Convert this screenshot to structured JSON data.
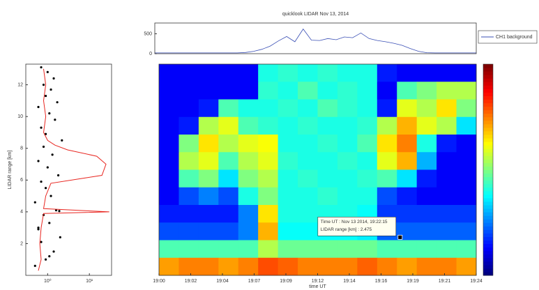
{
  "chart_data": [
    {
      "type": "line",
      "title": "quicklook LIDAR Nov 13, 2014",
      "series": [
        {
          "name": "CH1 background",
          "color": "#3a4fb5",
          "values": [
            20,
            20,
            20,
            20,
            20,
            20,
            20,
            20,
            20,
            20,
            20,
            30,
            60,
            110,
            190,
            320,
            430,
            300,
            620,
            340,
            330,
            380,
            350,
            420,
            400,
            520,
            380,
            330,
            300,
            260,
            210,
            130,
            60,
            25,
            20,
            20,
            20,
            20,
            20,
            20
          ]
        }
      ],
      "ylim": [
        0,
        770
      ],
      "yticks": [
        0,
        500
      ],
      "legend": "right"
    },
    {
      "type": "scatter",
      "ylabel": "LIDAR range [km]",
      "xscale": "log",
      "xlim": [
        0.3,
        34
      ],
      "xticks": [
        {
          "value": 1,
          "label": "10⁰"
        },
        {
          "value": 10,
          "label": "10¹"
        }
      ],
      "ylim": [
        0,
        13.3
      ],
      "yticks": [
        2,
        4,
        6,
        8,
        10,
        12
      ],
      "series": [
        {
          "color": "#000000",
          "kind": "dots",
          "x": [
            0.5,
            0.9,
            1.4,
            0.7,
            2.0,
            0.6,
            1.1,
            0.8,
            1.6,
            0.5,
            1.2,
            0.9,
            0.7,
            1.8,
            1.0,
            0.6,
            1.3,
            0.8,
            2.2,
            0.9,
            0.7,
            1.5,
            1.1,
            0.6,
            1.7,
            0.9,
            1.2,
            0.8,
            1.4,
            1.0,
            0.7,
            1.9,
            0.6,
            1.1
          ],
          "values": [
            0.6,
            1.0,
            1.5,
            2.1,
            2.4,
            2.9,
            3.3,
            3.8,
            4.1,
            4.6,
            5.0,
            5.5,
            5.9,
            6.3,
            6.8,
            7.2,
            7.6,
            8.1,
            8.5,
            8.9,
            9.3,
            9.8,
            10.2,
            10.6,
            10.9,
            11.3,
            11.7,
            12.0,
            12.4,
            12.8,
            13.1,
            4.05,
            3.0,
            1.2
          ]
        },
        {
          "color": "#e8251f",
          "kind": "line",
          "x": [
            0.6,
            0.7,
            0.65,
            0.7,
            0.8,
            30,
            0.8,
            0.9,
            1.2,
            20,
            25,
            15,
            3,
            1.5,
            1.0,
            0.8,
            0.9,
            0.8,
            0.9,
            0.8
          ],
          "values": [
            0.3,
            1.0,
            2.0,
            3.0,
            3.9,
            4.0,
            4.2,
            5.0,
            5.8,
            6.3,
            7.0,
            7.5,
            7.9,
            8.2,
            8.5,
            9.0,
            10.0,
            11.0,
            12.0,
            13.0
          ]
        }
      ]
    },
    {
      "type": "heatmap",
      "xlabel": "time UT",
      "colormap": "jet",
      "zlim": [
        0,
        1
      ],
      "xlim": [
        0,
        10
      ],
      "ylim": [
        0,
        13.3
      ],
      "xticks": [
        {
          "value": 0,
          "label": "19:00"
        },
        {
          "value": 1,
          "label": "19:02"
        },
        {
          "value": 2,
          "label": "19:04"
        },
        {
          "value": 3,
          "label": "19:07"
        },
        {
          "value": 4,
          "label": "19:09"
        },
        {
          "value": 5,
          "label": "19:12"
        },
        {
          "value": 6,
          "label": "19:14"
        },
        {
          "value": 7,
          "label": "19:16"
        },
        {
          "value": 8,
          "label": "19:19"
        },
        {
          "value": 9,
          "label": "19:21"
        },
        {
          "value": 10,
          "label": "19:24"
        }
      ],
      "z": [
        [
          0.12,
          0.12,
          0.12,
          0.12,
          0.12,
          0.4,
          0.42,
          0.4,
          0.42,
          0.4,
          0.4,
          0.15,
          0.12,
          0.12,
          0.12,
          0.12
        ],
        [
          0.12,
          0.12,
          0.12,
          0.12,
          0.12,
          0.42,
          0.4,
          0.45,
          0.4,
          0.42,
          0.4,
          0.12,
          0.45,
          0.5,
          0.55,
          0.55
        ],
        [
          0.12,
          0.12,
          0.15,
          0.45,
          0.4,
          0.4,
          0.42,
          0.4,
          0.45,
          0.42,
          0.4,
          0.15,
          0.6,
          0.55,
          0.65,
          0.5
        ],
        [
          0.12,
          0.15,
          0.55,
          0.6,
          0.45,
          0.42,
          0.4,
          0.42,
          0.4,
          0.4,
          0.42,
          0.55,
          0.7,
          0.6,
          0.55,
          0.35
        ],
        [
          0.12,
          0.5,
          0.65,
          0.55,
          0.6,
          0.62,
          0.4,
          0.4,
          0.42,
          0.4,
          0.45,
          0.65,
          0.75,
          0.4,
          0.15,
          0.12
        ],
        [
          0.12,
          0.55,
          0.6,
          0.45,
          0.55,
          0.6,
          0.42,
          0.4,
          0.4,
          0.42,
          0.4,
          0.6,
          0.7,
          0.3,
          0.12,
          0.12
        ],
        [
          0.12,
          0.45,
          0.5,
          0.35,
          0.5,
          0.55,
          0.4,
          0.42,
          0.4,
          0.4,
          0.42,
          0.45,
          0.35,
          0.15,
          0.12,
          0.12
        ],
        [
          0.12,
          0.2,
          0.25,
          0.2,
          0.4,
          0.5,
          0.4,
          0.4,
          0.42,
          0.4,
          0.4,
          0.2,
          0.15,
          0.12,
          0.12,
          0.12
        ],
        [
          0.15,
          0.15,
          0.15,
          0.15,
          0.25,
          0.65,
          0.4,
          0.4,
          0.4,
          0.4,
          0.38,
          0.18,
          0.18,
          0.18,
          0.18,
          0.18
        ],
        [
          0.2,
          0.2,
          0.2,
          0.2,
          0.25,
          0.7,
          0.38,
          0.38,
          0.38,
          0.38,
          0.36,
          0.22,
          0.22,
          0.22,
          0.22,
          0.22
        ],
        [
          0.45,
          0.45,
          0.45,
          0.45,
          0.45,
          0.55,
          0.48,
          0.48,
          0.48,
          0.48,
          0.48,
          0.45,
          0.45,
          0.45,
          0.45,
          0.45
        ],
        [
          0.72,
          0.75,
          0.75,
          0.72,
          0.75,
          0.8,
          0.78,
          0.75,
          0.75,
          0.75,
          0.78,
          0.75,
          0.72,
          0.75,
          0.75,
          0.72
        ]
      ],
      "annotation": {
        "x": 7.6,
        "y": 2.4,
        "lines": [
          "Time UT : Nov 13 2014, 19:22:15",
          "LIDAR range [km] : 2.475"
        ]
      }
    }
  ]
}
